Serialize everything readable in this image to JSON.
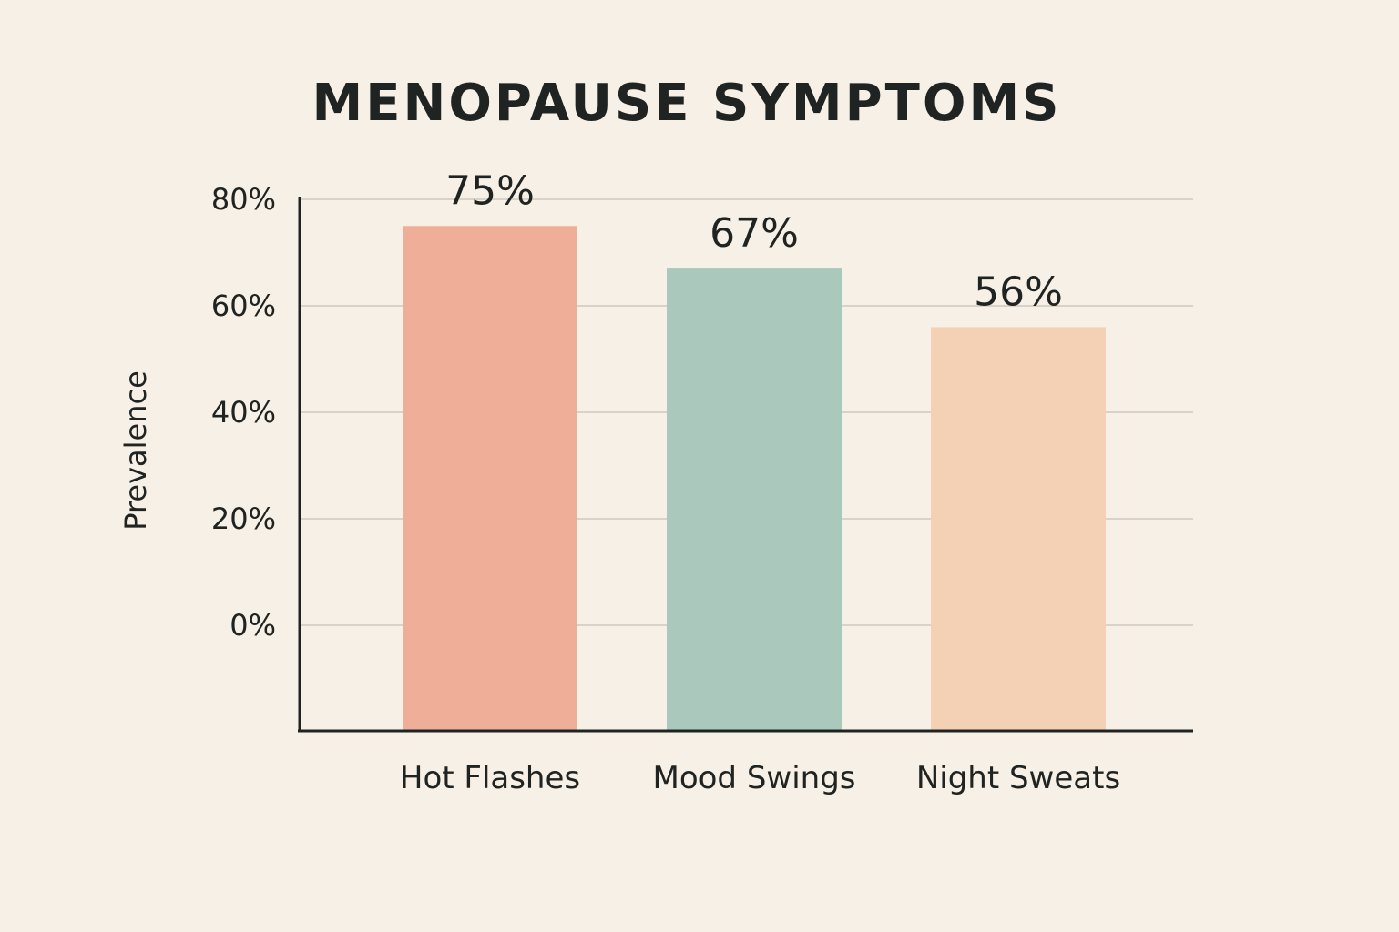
{
  "chart_data": {
    "type": "bar",
    "title": "MENOPAUSE SYMPTOMS",
    "xlabel": "",
    "ylabel": "Prevalence",
    "categories": [
      "Hot Flashes",
      "Mood Swings",
      "Night Sweats"
    ],
    "values": [
      75,
      67,
      56
    ],
    "value_labels": [
      "75%",
      "67%",
      "56%"
    ],
    "y_ticks": [
      0,
      20,
      40,
      60,
      80
    ],
    "y_tick_labels": [
      "0%",
      "20%",
      "40%",
      "60%",
      "80%"
    ],
    "grid": true,
    "colors": [
      "#eeae97",
      "#abc8bd",
      "#f4d0b4"
    ],
    "axis_color": "#1f2321",
    "grid_color": "#d8d2c8",
    "background": "#f7f0e6"
  }
}
